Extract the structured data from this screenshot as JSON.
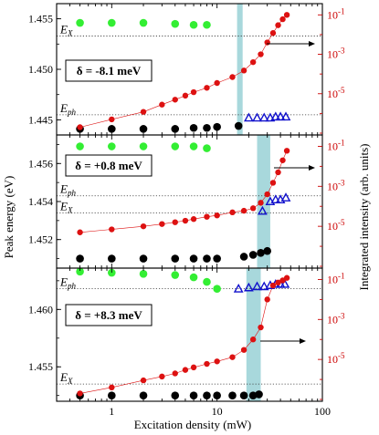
{
  "figure": {
    "xlabel": "Excitation density (mW)",
    "ylabel_left": "Peak energy (eV)",
    "ylabel_right": "Integrated intensity (arb. units)",
    "x_ticks": [
      {
        "v": 1,
        "label": "1"
      },
      {
        "v": 10,
        "label": "10"
      },
      {
        "v": 100,
        "label": "100"
      }
    ],
    "right_ticks": [
      {
        "base": "10",
        "exp": "-1",
        "v": 0.1
      },
      {
        "base": "10",
        "exp": "-3",
        "v": 0.001
      },
      {
        "base": "10",
        "exp": "-5",
        "v": 1e-05
      }
    ],
    "colors": {
      "exciton": "#33ee33",
      "polariton": "#000000",
      "intensity": "#dd1111",
      "photon": "#1111cc",
      "band": "#a8d8dc",
      "right_axis": "#cc0000"
    }
  },
  "chart_data": [
    {
      "type": "scatter",
      "panel": "top",
      "x_scale": "log",
      "xlim": [
        0.3,
        100
      ],
      "ylim": [
        1.4435,
        1.4565
      ],
      "y_ticks": [
        1.445,
        1.45,
        1.455
      ],
      "right_scale": "log",
      "right_lim": [
        1e-07,
        0.3
      ],
      "annotation": "δ = -8.1 meV",
      "level_labels": [
        {
          "base": "E",
          "sub": "X",
          "y": 1.4533
        },
        {
          "base": "E",
          "sub": "ph",
          "y": 1.4455
        }
      ],
      "shaded_band_x": [
        15.5,
        17.5
      ],
      "arrow_direction": "right",
      "series": [
        {
          "role": "exciton",
          "x": [
            0.5,
            1,
            2,
            4,
            6,
            8
          ],
          "y": [
            1.4546,
            1.4546,
            1.4546,
            1.4545,
            1.4544,
            1.4544
          ]
        },
        {
          "role": "polariton",
          "x": [
            0.5,
            1,
            2,
            4,
            6,
            8,
            10,
            16
          ],
          "y": [
            1.4441,
            1.4441,
            1.4441,
            1.4441,
            1.4442,
            1.4442,
            1.4443,
            1.4444
          ]
        },
        {
          "role": "photon",
          "x": [
            20,
            24,
            28,
            32,
            36,
            40,
            45
          ],
          "y": [
            1.4452,
            1.4452,
            1.4452,
            1.4452,
            1.4453,
            1.4453,
            1.4453
          ]
        },
        {
          "role": "intensity",
          "axis": "right",
          "x": [
            0.5,
            1,
            2,
            3,
            4,
            5,
            6,
            8,
            10,
            14,
            18,
            22,
            26,
            30,
            34,
            38,
            42,
            46
          ],
          "y": [
            2e-07,
            5e-07,
            1.2e-06,
            2.8e-06,
            5e-06,
            8e-06,
            1.2e-05,
            2e-05,
            3.5e-05,
            7e-05,
            0.00015,
            0.0004,
            0.001,
            0.004,
            0.012,
            0.03,
            0.06,
            0.1
          ]
        }
      ]
    },
    {
      "type": "scatter",
      "panel": "middle",
      "x_scale": "log",
      "xlim": [
        0.3,
        100
      ],
      "ylim": [
        1.4505,
        1.4575
      ],
      "y_ticks": [
        1.452,
        1.454,
        1.456
      ],
      "right_scale": "log",
      "right_lim": [
        1e-07,
        0.3
      ],
      "annotation": "δ = +0.8 meV",
      "level_labels": [
        {
          "base": "E",
          "sub": "ph",
          "y": 1.4543
        },
        {
          "base": "E",
          "sub": "X",
          "y": 1.4534
        }
      ],
      "shaded_band_x": [
        24,
        32
      ],
      "arrow_direction": "right",
      "series": [
        {
          "role": "exciton",
          "x": [
            0.5,
            1,
            2,
            4,
            6,
            8
          ],
          "y": [
            1.4569,
            1.4569,
            1.4569,
            1.4569,
            1.4569,
            1.4568
          ]
        },
        {
          "role": "polariton",
          "x": [
            0.5,
            1,
            2,
            4,
            6,
            8,
            10,
            18,
            22,
            26,
            30
          ],
          "y": [
            1.451,
            1.451,
            1.451,
            1.451,
            1.451,
            1.451,
            1.451,
            1.4511,
            1.4512,
            1.4513,
            1.4514
          ]
        },
        {
          "role": "photon",
          "x": [
            27,
            32,
            36,
            40,
            45
          ],
          "y": [
            1.4535,
            1.454,
            1.4541,
            1.4541,
            1.4542
          ]
        },
        {
          "role": "intensity",
          "axis": "right",
          "x": [
            0.5,
            1,
            2,
            3,
            4,
            5,
            6,
            8,
            10,
            14,
            18,
            22,
            26,
            30,
            34,
            38,
            42,
            46
          ],
          "y": [
            5e-06,
            7e-06,
            1e-05,
            1.3e-05,
            1.6e-05,
            1.9e-05,
            2.3e-05,
            3e-05,
            3.5e-05,
            5e-05,
            6e-05,
            8e-05,
            0.00015,
            0.0004,
            0.0015,
            0.005,
            0.02,
            0.06
          ]
        }
      ]
    },
    {
      "type": "scatter",
      "panel": "bottom",
      "x_scale": "log",
      "xlim": [
        0.3,
        100
      ],
      "ylim": [
        1.452,
        1.4636
      ],
      "y_ticks": [
        1.455,
        1.46
      ],
      "right_scale": "log",
      "right_lim": [
        1e-07,
        0.3
      ],
      "annotation": "δ = +8.3 meV",
      "level_labels": [
        {
          "base": "E",
          "sub": "ph",
          "y": 1.4618
        },
        {
          "base": "E",
          "sub": "X",
          "y": 1.4535
        }
      ],
      "shaded_band_x": [
        19,
        26
      ],
      "arrow_direction": "right",
      "series": [
        {
          "role": "exciton",
          "x": [
            0.5,
            1,
            2,
            4,
            6,
            8,
            10
          ],
          "y": [
            1.4633,
            1.4632,
            1.4631,
            1.463,
            1.4628,
            1.4624,
            1.4618
          ]
        },
        {
          "role": "polariton",
          "x": [
            0.5,
            1,
            2,
            4,
            6,
            8,
            10,
            14,
            18,
            22,
            25
          ],
          "y": [
            1.4525,
            1.4525,
            1.4525,
            1.4525,
            1.4525,
            1.4525,
            1.4525,
            1.4525,
            1.4525,
            1.4525,
            1.4526
          ]
        },
        {
          "role": "photon",
          "x": [
            16,
            20,
            24,
            28,
            32,
            36,
            40,
            44
          ],
          "y": [
            1.4618,
            1.4619,
            1.462,
            1.462,
            1.4621,
            1.4622,
            1.4622,
            1.4622
          ]
        },
        {
          "role": "intensity",
          "axis": "right",
          "x": [
            0.5,
            1,
            2,
            3,
            4,
            5,
            6,
            8,
            10,
            14,
            18,
            22,
            26,
            30,
            34,
            38,
            42,
            46
          ],
          "y": [
            2e-07,
            4e-07,
            9e-07,
            1.4e-06,
            2e-06,
            3e-06,
            4e-06,
            6e-06,
            8e-06,
            1.3e-05,
            3e-05,
            0.0001,
            0.0004,
            0.01,
            0.05,
            0.07,
            0.09,
            0.12
          ]
        }
      ]
    }
  ]
}
